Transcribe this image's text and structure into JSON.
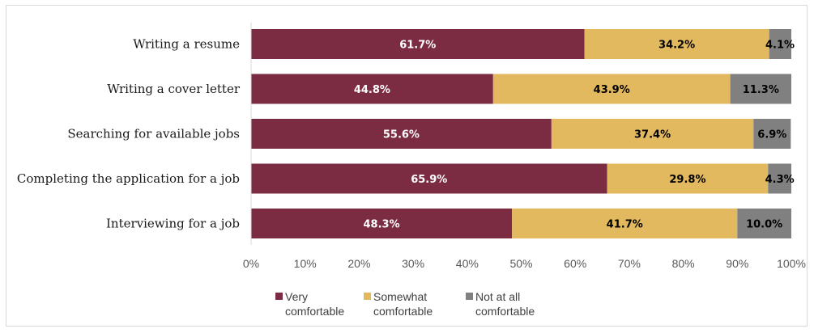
{
  "chart_data": {
    "type": "bar",
    "orientation": "horizontal",
    "stacked": true,
    "title": "",
    "xlabel": "",
    "ylabel": "",
    "xlim": [
      0,
      100
    ],
    "x_ticks": [
      "0%",
      "10%",
      "20%",
      "30%",
      "40%",
      "50%",
      "60%",
      "70%",
      "80%",
      "90%",
      "100%"
    ],
    "categories": [
      "Writing a resume",
      "Writing a cover letter",
      "Searching for available jobs",
      "Completing the application for a job",
      "Interviewing for a job"
    ],
    "series": [
      {
        "name": "Very comfortable",
        "legend_lines": [
          "Very",
          "comfortable"
        ],
        "color": "#7b2c43",
        "label_color": "#ffffff",
        "values": [
          61.7,
          44.8,
          55.6,
          65.9,
          48.3
        ],
        "labels": [
          "61.7%",
          "44.8%",
          "55.6%",
          "65.9%",
          "48.3%"
        ]
      },
      {
        "name": "Somewhat comfortable",
        "legend_lines": [
          "Somewhat",
          "comfortable"
        ],
        "color": "#e3b95f",
        "label_color": "#000000",
        "values": [
          34.2,
          43.9,
          37.4,
          29.8,
          41.7
        ],
        "labels": [
          "34.2%",
          "43.9%",
          "37.4%",
          "29.8%",
          "41.7%"
        ]
      },
      {
        "name": "Not at all comfortable",
        "legend_lines": [
          "Not at all",
          "comfortable"
        ],
        "color": "#808080",
        "label_color": "#000000",
        "values": [
          4.1,
          11.3,
          6.9,
          4.3,
          10.0
        ],
        "labels": [
          "4.1%",
          "11.3%",
          "6.9%",
          "4.3%",
          "10.0%"
        ]
      }
    ],
    "grid": false,
    "legend_position": "bottom"
  }
}
